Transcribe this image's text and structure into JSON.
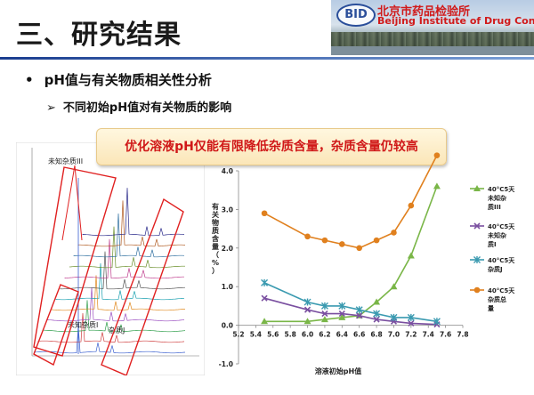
{
  "slide": {
    "title": "三、研究结果",
    "org_cn": "北京市药品检验所",
    "org_en": "Beijing Institute of Drug Control",
    "logo": "BID",
    "bullet1": "pH值与有关物质相关性分析",
    "bullet2": "不同初始pH值对有关物质的影响",
    "callout": "优化溶液pH仅能有限降低杂质含量，杂质含量仍较高",
    "chrom_labels": {
      "peak3": "未知杂质III",
      "peak1": "未知杂质I",
      "impJ": "杂质J"
    }
  },
  "chart_data": {
    "type": "line",
    "xlabel": "溶液初始pH值",
    "ylabel": "有关物质含量（%）",
    "xlim": [
      5.2,
      7.8
    ],
    "ylim": [
      -1.0,
      4.0
    ],
    "xticks": [
      "5.2",
      "5.4",
      "5.6",
      "5.8",
      "6.0",
      "6.2",
      "6.4",
      "6.6",
      "6.8",
      "7.0",
      "7.2",
      "7.4",
      "7.6",
      "7.8"
    ],
    "yticks": [
      "-1.0",
      "0.0",
      "1.0",
      "2.0",
      "3.0",
      "4.0"
    ],
    "grid": false,
    "legend_position": "right",
    "series": [
      {
        "name": "40°C5天未知杂质III",
        "color": "#7ab648",
        "marker": "triangle",
        "x": [
          5.5,
          6.0,
          6.2,
          6.4,
          6.6,
          6.8,
          7.0,
          7.2,
          7.5
        ],
        "y": [
          0.1,
          0.1,
          0.15,
          0.2,
          0.25,
          0.6,
          1.0,
          1.8,
          3.6
        ]
      },
      {
        "name": "40°C5天未知杂质I",
        "color": "#7a4fa0",
        "marker": "x",
        "x": [
          5.5,
          6.0,
          6.2,
          6.4,
          6.6,
          6.8,
          7.0,
          7.2,
          7.5
        ],
        "y": [
          0.7,
          0.4,
          0.3,
          0.3,
          0.25,
          0.15,
          0.1,
          0.05,
          0.02
        ]
      },
      {
        "name": "40°C5天杂质J",
        "color": "#3a9ab0",
        "marker": "star",
        "x": [
          5.5,
          6.0,
          6.2,
          6.4,
          6.6,
          6.8,
          7.0,
          7.2,
          7.5
        ],
        "y": [
          1.1,
          0.6,
          0.5,
          0.5,
          0.4,
          0.3,
          0.2,
          0.2,
          0.1
        ]
      },
      {
        "name": "40°C5天杂质总量",
        "color": "#e0801e",
        "marker": "circle",
        "x": [
          5.5,
          6.0,
          6.2,
          6.4,
          6.6,
          6.8,
          7.0,
          7.2,
          7.5
        ],
        "y": [
          2.9,
          2.3,
          2.2,
          2.1,
          2.0,
          2.2,
          2.4,
          3.1,
          4.4
        ]
      }
    ]
  }
}
